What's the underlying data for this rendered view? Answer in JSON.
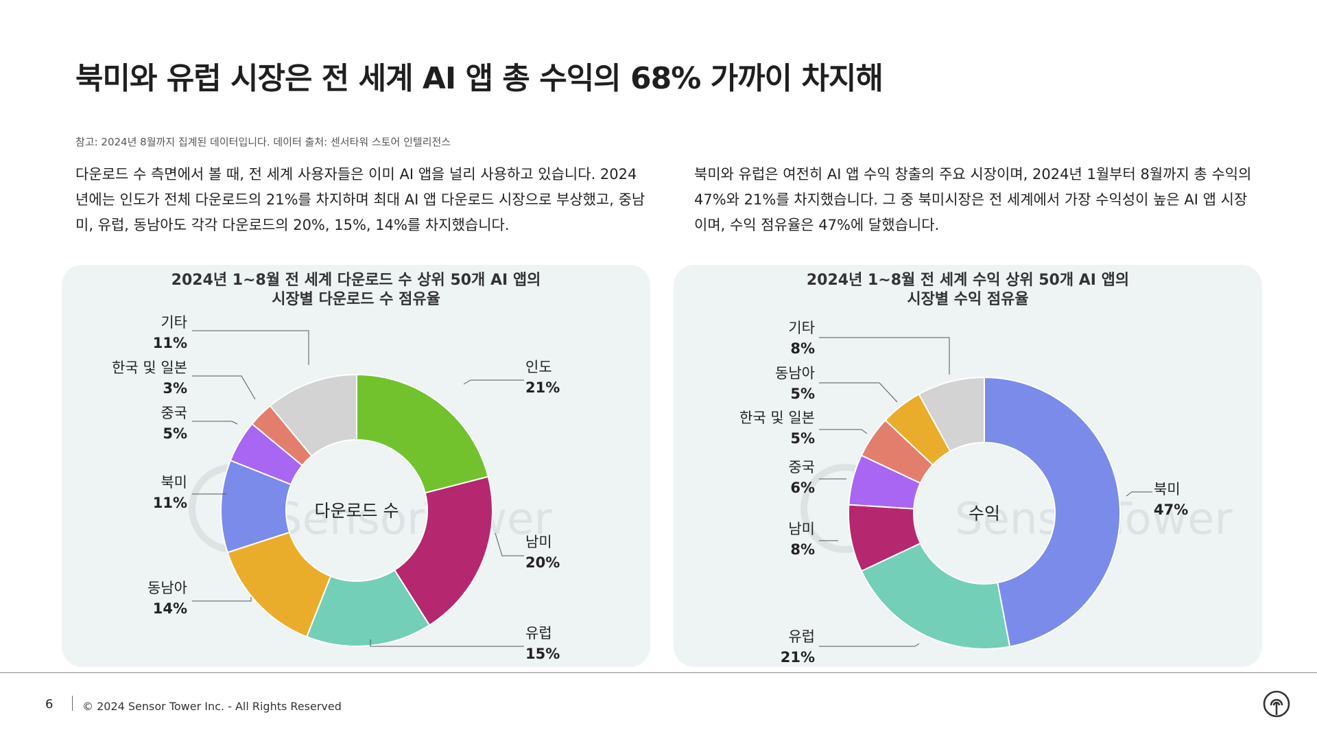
{
  "title": "북미와 유럽 시장은 전 세계 AI 앱 총 수익의 68% 가까이 차지해",
  "note": "참고: 2024년 8월까지 집계된 데이터입니다. 데이터 출처: 센서타워 스토어 인텔리전스",
  "paragraph_left": "다운로드 수 측면에서 볼 때, 전 세계 사용자들은 이미 AI 앱을 널리 사용하고 있습니다. 2024년에는 인도가 전체 다운로드의 21%를 차지하며 최대 AI 앱 다운로드 시장으로 부상했고, 중남미, 유럽, 동남아도 각각 다운로드의 20%, 15%, 14%를 차지했습니다.",
  "paragraph_right": "북미와 유럽은 여전히 AI 앱 수익 창출의 주요 시장이며, 2024년 1월부터 8월까지 총 수익의 47%와 21%를 차지했습니다. 그 중 북미시장은 전 세계에서 가장 수익성이 높은 AI 앱 시장이며, 수익 점유율은 47%에 달했습니다.",
  "watermark": "SensorTower",
  "chart_data": [
    {
      "type": "pie",
      "variant": "donut",
      "title_line1": "2024년 1~8월 전 세계 다운로드 수 상위 50개 AI 앱의",
      "title_line2": "시장별 다운로드 수 점유율",
      "center_label": "다운로드 수",
      "slices": [
        {
          "name": "인도",
          "value": 21,
          "label": "21%",
          "color": "#72c22e"
        },
        {
          "name": "남미",
          "value": 20,
          "label": "20%",
          "color": "#b5276e"
        },
        {
          "name": "유럽",
          "value": 15,
          "label": "15%",
          "color": "#74cfb8"
        },
        {
          "name": "동남아",
          "value": 14,
          "label": "14%",
          "color": "#eaad2b"
        },
        {
          "name": "북미",
          "value": 11,
          "label": "11%",
          "color": "#7b8be9"
        },
        {
          "name": "중국",
          "value": 5,
          "label": "5%",
          "color": "#a866f2"
        },
        {
          "name": "한국 및 일본",
          "value": 3,
          "label": "3%",
          "color": "#e47e6c"
        },
        {
          "name": "기타",
          "value": 11,
          "label": "11%",
          "color": "#d3d3d3"
        }
      ]
    },
    {
      "type": "pie",
      "variant": "donut",
      "title_line1": "2024년 1~8월 전 세계 수익 상위 50개 AI 앱의",
      "title_line2": "시장별 수익 점유율",
      "center_label": "수익",
      "slices": [
        {
          "name": "북미",
          "value": 47,
          "label": "47%",
          "color": "#7b8be9"
        },
        {
          "name": "유럽",
          "value": 21,
          "label": "21%",
          "color": "#74cfb8"
        },
        {
          "name": "남미",
          "value": 8,
          "label": "8%",
          "color": "#b5276e"
        },
        {
          "name": "중국",
          "value": 6,
          "label": "6%",
          "color": "#a866f2"
        },
        {
          "name": "한국 및 일본",
          "value": 5,
          "label": "5%",
          "color": "#e47e6c"
        },
        {
          "name": "동남아",
          "value": 5,
          "label": "5%",
          "color": "#eaad2b"
        },
        {
          "name": "기타",
          "value": 8,
          "label": "8%",
          "color": "#d3d3d3"
        }
      ]
    }
  ],
  "footer": {
    "page_number": "6",
    "copyright": "© 2024 Sensor Tower Inc. - All Rights Reserved"
  }
}
